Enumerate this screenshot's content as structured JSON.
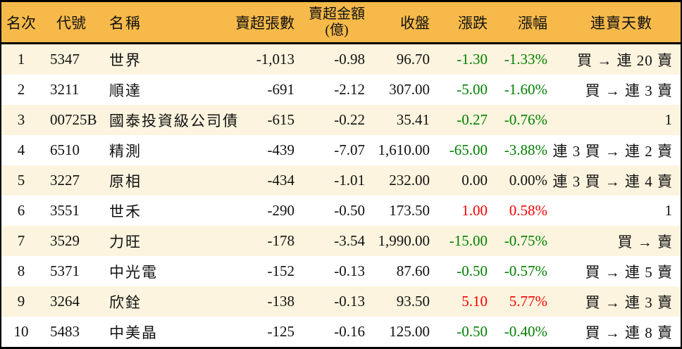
{
  "colors": {
    "header_bg": "#F7BA4A",
    "row_alt_bg": "#FCF4DE",
    "border": "#000000",
    "text": "#111111",
    "up": "#F40000",
    "down": "#008000"
  },
  "table": {
    "columns": [
      {
        "key": "rank",
        "label": "名次"
      },
      {
        "key": "code",
        "label": "代號"
      },
      {
        "key": "name",
        "label": "名稱"
      },
      {
        "key": "sell_volume",
        "label": "賣超張數"
      },
      {
        "key": "sell_amount",
        "label": "賣超金額",
        "label2": "(億)"
      },
      {
        "key": "close",
        "label": "收盤"
      },
      {
        "key": "change",
        "label": "漲跌"
      },
      {
        "key": "change_pct",
        "label": "漲幅"
      },
      {
        "key": "streak",
        "label": "連賣天數"
      }
    ],
    "rows": [
      {
        "rank": "1",
        "code": "5347",
        "name": "世界",
        "sell_volume": "-1,013",
        "sell_amount": "-0.98",
        "close": "96.70",
        "change": "-1.30",
        "change_pct": "-1.33%",
        "change_dir": "down",
        "streak": "買 → 連 20 賣"
      },
      {
        "rank": "2",
        "code": "3211",
        "name": "順達",
        "sell_volume": "-691",
        "sell_amount": "-2.12",
        "close": "307.00",
        "change": "-5.00",
        "change_pct": "-1.60%",
        "change_dir": "down",
        "streak": "買 → 連 3 賣"
      },
      {
        "rank": "3",
        "code": "00725B",
        "name": "國泰投資級公司債",
        "sell_volume": "-615",
        "sell_amount": "-0.22",
        "close": "35.41",
        "change": "-0.27",
        "change_pct": "-0.76%",
        "change_dir": "down",
        "streak": "1"
      },
      {
        "rank": "4",
        "code": "6510",
        "name": "精測",
        "sell_volume": "-439",
        "sell_amount": "-7.07",
        "close": "1,610.00",
        "change": "-65.00",
        "change_pct": "-3.88%",
        "change_dir": "down",
        "streak": "連 3 買 → 連 2 賣"
      },
      {
        "rank": "5",
        "code": "3227",
        "name": "原相",
        "sell_volume": "-434",
        "sell_amount": "-1.01",
        "close": "232.00",
        "change": "0.00",
        "change_pct": "0.00%",
        "change_dir": "flat",
        "streak": "連 3 買 → 連 4 賣"
      },
      {
        "rank": "6",
        "code": "3551",
        "name": "世禾",
        "sell_volume": "-290",
        "sell_amount": "-0.50",
        "close": "173.50",
        "change": "1.00",
        "change_pct": "0.58%",
        "change_dir": "up",
        "streak": "1"
      },
      {
        "rank": "7",
        "code": "3529",
        "name": "力旺",
        "sell_volume": "-178",
        "sell_amount": "-3.54",
        "close": "1,990.00",
        "change": "-15.00",
        "change_pct": "-0.75%",
        "change_dir": "down",
        "streak": "買 → 賣"
      },
      {
        "rank": "8",
        "code": "5371",
        "name": "中光電",
        "sell_volume": "-152",
        "sell_amount": "-0.13",
        "close": "87.60",
        "change": "-0.50",
        "change_pct": "-0.57%",
        "change_dir": "down",
        "streak": "買 → 連 5 賣"
      },
      {
        "rank": "9",
        "code": "3264",
        "name": "欣銓",
        "sell_volume": "-138",
        "sell_amount": "-0.13",
        "close": "93.50",
        "change": "5.10",
        "change_pct": "5.77%",
        "change_dir": "up",
        "streak": "買 → 連 3 賣"
      },
      {
        "rank": "10",
        "code": "5483",
        "name": "中美晶",
        "sell_volume": "-125",
        "sell_amount": "-0.16",
        "close": "125.00",
        "change": "-0.50",
        "change_pct": "-0.40%",
        "change_dir": "down",
        "streak": "買 → 連 8 賣"
      }
    ]
  }
}
